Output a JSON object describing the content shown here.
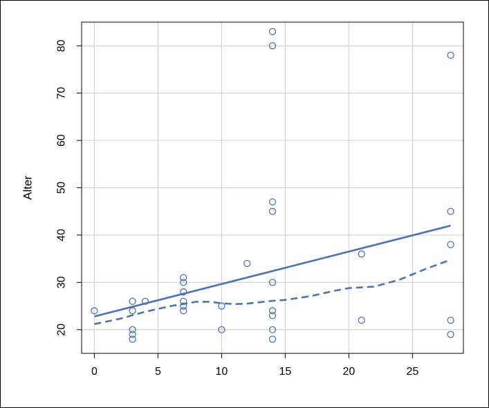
{
  "chart_data": {
    "type": "scatter",
    "title": "",
    "xlabel": "",
    "ylabel": "Alter",
    "xlim": [
      -1,
      29
    ],
    "ylim": [
      15,
      85
    ],
    "grid": true,
    "x_ticks": [
      0,
      5,
      10,
      15,
      20,
      25
    ],
    "y_ticks": [
      20,
      30,
      40,
      50,
      60,
      70,
      80
    ],
    "colors": {
      "points": "#4a72b8",
      "lines": "#4a72b8",
      "grid": "#d3d3d3"
    },
    "points": [
      [
        0,
        24
      ],
      [
        3,
        26
      ],
      [
        3,
        24
      ],
      [
        3,
        20
      ],
      [
        3,
        19
      ],
      [
        3,
        18
      ],
      [
        4,
        26
      ],
      [
        7,
        31
      ],
      [
        7,
        30
      ],
      [
        7,
        28
      ],
      [
        7,
        26
      ],
      [
        7,
        25
      ],
      [
        7,
        24
      ],
      [
        10,
        25
      ],
      [
        10,
        20
      ],
      [
        12,
        34
      ],
      [
        14,
        83
      ],
      [
        14,
        80
      ],
      [
        14,
        47
      ],
      [
        14,
        45
      ],
      [
        14,
        30
      ],
      [
        14,
        24
      ],
      [
        14,
        23
      ],
      [
        14,
        20
      ],
      [
        14,
        18
      ],
      [
        21,
        36
      ],
      [
        21,
        22
      ],
      [
        28,
        78
      ],
      [
        28,
        45
      ],
      [
        28,
        38
      ],
      [
        28,
        22
      ],
      [
        28,
        19
      ]
    ],
    "regression_line": [
      [
        0,
        22.8
      ],
      [
        28,
        42.0
      ]
    ],
    "smooth_line": [
      [
        0,
        21.2
      ],
      [
        2,
        22.3
      ],
      [
        4,
        23.8
      ],
      [
        6,
        25.0
      ],
      [
        8,
        25.9
      ],
      [
        9,
        25.9
      ],
      [
        10,
        25.6
      ],
      [
        11,
        25.4
      ],
      [
        12,
        25.5
      ],
      [
        13,
        25.8
      ],
      [
        14,
        26.1
      ],
      [
        15,
        26.3
      ],
      [
        17,
        27.1
      ],
      [
        19,
        28.3
      ],
      [
        20,
        28.8
      ],
      [
        22,
        29.1
      ],
      [
        24,
        30.6
      ],
      [
        26,
        32.8
      ],
      [
        28,
        34.8
      ]
    ]
  }
}
